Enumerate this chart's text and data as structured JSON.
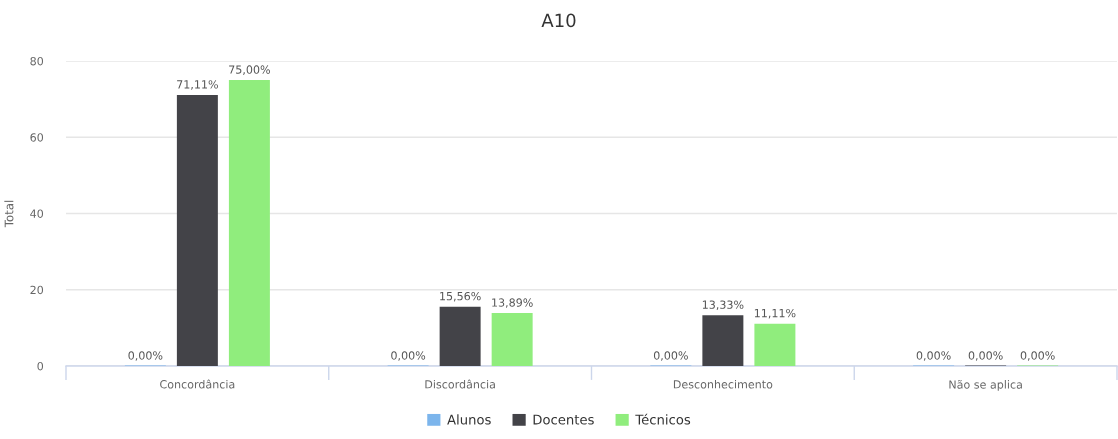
{
  "chart_data": {
    "type": "bar",
    "title": "A10",
    "ylabel": "Total",
    "categories": [
      "Concordância",
      "Discordância",
      "Desconhecimento",
      "Não se aplica"
    ],
    "series": [
      {
        "name": "Alunos",
        "color": "#7cb5ec",
        "values": [
          0,
          0,
          0,
          0
        ],
        "value_labels": [
          "0,00%",
          "0,00%",
          "0,00%",
          "0,00%"
        ]
      },
      {
        "name": "Docentes",
        "color": "#434348",
        "values": [
          71.11,
          15.56,
          13.33,
          0
        ],
        "value_labels": [
          "71,11%",
          "15,56%",
          "13,33%",
          "0,00%"
        ]
      },
      {
        "name": "Técnicos",
        "color": "#90ed7d",
        "values": [
          75,
          13.89,
          11.11,
          0
        ],
        "value_labels": [
          "75,00%",
          "13,89%",
          "11,11%",
          "0,00%"
        ]
      }
    ],
    "ylim": [
      0,
      80
    ],
    "yticks": [
      0,
      20,
      40,
      60,
      80
    ],
    "grid": "y",
    "legend": "bottom"
  }
}
